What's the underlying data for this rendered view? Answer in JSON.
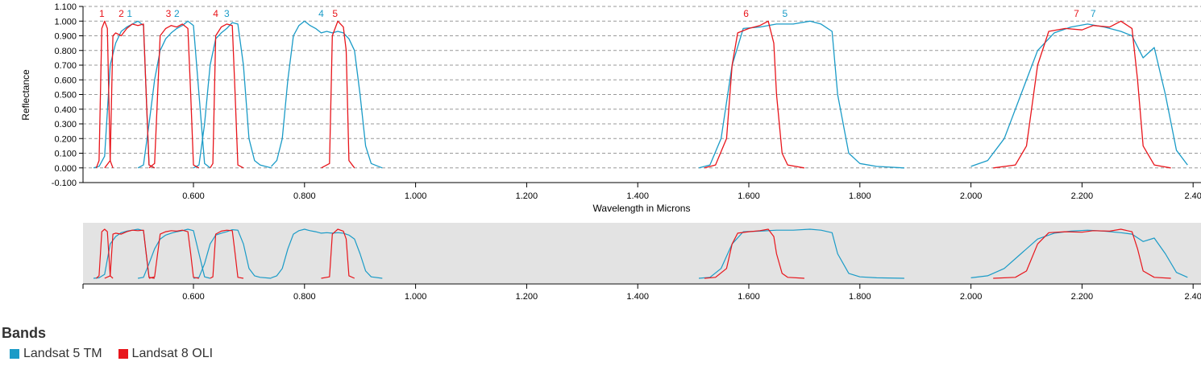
{
  "chart_data": {
    "type": "line",
    "xlabel": "Wavelength in Microns",
    "ylabel": "Reflectance",
    "xlim": [
      0.4,
      2.4
    ],
    "ylim": [
      -0.1,
      1.1
    ],
    "x_ticks": [
      "0.600",
      "0.800",
      "1.000",
      "1.200",
      "1.400",
      "1.600",
      "1.800",
      "2.000",
      "2.200",
      "2.40"
    ],
    "y_ticks": [
      "-0.100",
      "0.000",
      "0.100",
      "0.200",
      "0.300",
      "0.400",
      "0.500",
      "0.600",
      "0.700",
      "0.800",
      "0.900",
      "1.000",
      "1.100"
    ],
    "grid": "horizontal dashed",
    "legend_title": "Bands",
    "colors": {
      "tm": "#1a9bc7",
      "oli": "#e8151b",
      "navigator_bg": "#e3e3e3"
    },
    "series": [
      {
        "name": "Landsat 5 TM",
        "band_labels": [
          {
            "text": "1",
            "x": 0.485
          },
          {
            "text": "2",
            "x": 0.57
          },
          {
            "text": "3",
            "x": 0.66
          },
          {
            "text": "4",
            "x": 0.83
          },
          {
            "text": "5",
            "x": 1.665
          },
          {
            "text": "7",
            "x": 2.22
          }
        ],
        "bands": [
          [
            [
              0.42,
              0.0
            ],
            [
              0.43,
              0.01
            ],
            [
              0.44,
              0.08
            ],
            [
              0.45,
              0.7
            ],
            [
              0.46,
              0.85
            ],
            [
              0.47,
              0.93
            ],
            [
              0.48,
              0.96
            ],
            [
              0.49,
              0.98
            ],
            [
              0.5,
              1.0
            ],
            [
              0.51,
              0.97
            ],
            [
              0.515,
              0.5
            ],
            [
              0.52,
              0.02
            ],
            [
              0.53,
              0.0
            ]
          ],
          [
            [
              0.5,
              0.0
            ],
            [
              0.51,
              0.02
            ],
            [
              0.52,
              0.3
            ],
            [
              0.53,
              0.6
            ],
            [
              0.54,
              0.8
            ],
            [
              0.55,
              0.88
            ],
            [
              0.56,
              0.92
            ],
            [
              0.57,
              0.95
            ],
            [
              0.58,
              0.97
            ],
            [
              0.59,
              1.0
            ],
            [
              0.6,
              0.97
            ],
            [
              0.61,
              0.5
            ],
            [
              0.62,
              0.03
            ],
            [
              0.63,
              0.0
            ]
          ],
          [
            [
              0.6,
              0.0
            ],
            [
              0.61,
              0.02
            ],
            [
              0.62,
              0.3
            ],
            [
              0.63,
              0.7
            ],
            [
              0.64,
              0.88
            ],
            [
              0.65,
              0.92
            ],
            [
              0.66,
              0.95
            ],
            [
              0.67,
              0.99
            ],
            [
              0.68,
              0.98
            ],
            [
              0.69,
              0.7
            ],
            [
              0.7,
              0.2
            ],
            [
              0.71,
              0.05
            ],
            [
              0.72,
              0.02
            ],
            [
              0.74,
              0.0
            ]
          ],
          [
            [
              0.74,
              0.01
            ],
            [
              0.75,
              0.05
            ],
            [
              0.76,
              0.2
            ],
            [
              0.77,
              0.6
            ],
            [
              0.78,
              0.9
            ],
            [
              0.79,
              0.97
            ],
            [
              0.8,
              1.0
            ],
            [
              0.81,
              0.97
            ],
            [
              0.82,
              0.95
            ],
            [
              0.83,
              0.92
            ],
            [
              0.84,
              0.93
            ],
            [
              0.85,
              0.92
            ],
            [
              0.86,
              0.93
            ],
            [
              0.87,
              0.92
            ],
            [
              0.88,
              0.88
            ],
            [
              0.89,
              0.8
            ],
            [
              0.9,
              0.5
            ],
            [
              0.91,
              0.15
            ],
            [
              0.92,
              0.03
            ],
            [
              0.94,
              0.0
            ]
          ],
          [
            [
              1.51,
              0.0
            ],
            [
              1.53,
              0.02
            ],
            [
              1.55,
              0.2
            ],
            [
              1.57,
              0.7
            ],
            [
              1.59,
              0.95
            ],
            [
              1.62,
              0.96
            ],
            [
              1.65,
              0.98
            ],
            [
              1.68,
              0.98
            ],
            [
              1.71,
              1.0
            ],
            [
              1.73,
              0.98
            ],
            [
              1.75,
              0.93
            ],
            [
              1.76,
              0.5
            ],
            [
              1.78,
              0.1
            ],
            [
              1.8,
              0.03
            ],
            [
              1.83,
              0.01
            ],
            [
              1.88,
              0.0
            ]
          ],
          [
            [
              2.0,
              0.01
            ],
            [
              2.03,
              0.05
            ],
            [
              2.06,
              0.2
            ],
            [
              2.09,
              0.5
            ],
            [
              2.12,
              0.8
            ],
            [
              2.15,
              0.92
            ],
            [
              2.18,
              0.96
            ],
            [
              2.21,
              0.98
            ],
            [
              2.24,
              0.96
            ],
            [
              2.27,
              0.93
            ],
            [
              2.29,
              0.9
            ],
            [
              2.31,
              0.75
            ],
            [
              2.33,
              0.82
            ],
            [
              2.35,
              0.5
            ],
            [
              2.37,
              0.12
            ],
            [
              2.39,
              0.02
            ]
          ]
        ]
      },
      {
        "name": "Landsat 8 OLI",
        "band_labels": [
          {
            "text": "1",
            "x": 0.435
          },
          {
            "text": "2",
            "x": 0.47
          },
          {
            "text": "3",
            "x": 0.555
          },
          {
            "text": "4",
            "x": 0.64
          },
          {
            "text": "5",
            "x": 0.855
          },
          {
            "text": "6",
            "x": 1.595
          },
          {
            "text": "7",
            "x": 2.19
          }
        ],
        "bands": [
          [
            [
              0.425,
              0.0
            ],
            [
              0.43,
              0.05
            ],
            [
              0.435,
              0.95
            ],
            [
              0.44,
              1.0
            ],
            [
              0.445,
              0.95
            ],
            [
              0.45,
              0.05
            ],
            [
              0.455,
              0.0
            ]
          ],
          [
            [
              0.44,
              0.0
            ],
            [
              0.45,
              0.05
            ],
            [
              0.455,
              0.9
            ],
            [
              0.46,
              0.92
            ],
            [
              0.47,
              0.9
            ],
            [
              0.48,
              0.95
            ],
            [
              0.49,
              0.98
            ],
            [
              0.5,
              0.97
            ],
            [
              0.51,
              0.98
            ],
            [
              0.515,
              0.5
            ],
            [
              0.52,
              0.02
            ],
            [
              0.53,
              0.0
            ]
          ],
          [
            [
              0.52,
              0.0
            ],
            [
              0.53,
              0.03
            ],
            [
              0.54,
              0.9
            ],
            [
              0.55,
              0.95
            ],
            [
              0.56,
              0.97
            ],
            [
              0.57,
              0.96
            ],
            [
              0.58,
              0.98
            ],
            [
              0.59,
              0.95
            ],
            [
              0.595,
              0.5
            ],
            [
              0.6,
              0.02
            ],
            [
              0.61,
              0.0
            ]
          ],
          [
            [
              0.63,
              0.0
            ],
            [
              0.635,
              0.03
            ],
            [
              0.64,
              0.9
            ],
            [
              0.65,
              0.96
            ],
            [
              0.66,
              0.98
            ],
            [
              0.67,
              0.97
            ],
            [
              0.675,
              0.5
            ],
            [
              0.68,
              0.02
            ],
            [
              0.69,
              0.0
            ]
          ],
          [
            [
              0.83,
              0.0
            ],
            [
              0.845,
              0.03
            ],
            [
              0.85,
              0.9
            ],
            [
              0.855,
              0.95
            ],
            [
              0.86,
              1.0
            ],
            [
              0.87,
              0.96
            ],
            [
              0.875,
              0.8
            ],
            [
              0.88,
              0.05
            ],
            [
              0.89,
              0.0
            ]
          ],
          [
            [
              1.52,
              0.0
            ],
            [
              1.54,
              0.02
            ],
            [
              1.56,
              0.2
            ],
            [
              1.57,
              0.7
            ],
            [
              1.58,
              0.92
            ],
            [
              1.6,
              0.95
            ],
            [
              1.62,
              0.97
            ],
            [
              1.635,
              1.0
            ],
            [
              1.645,
              0.85
            ],
            [
              1.65,
              0.5
            ],
            [
              1.66,
              0.1
            ],
            [
              1.67,
              0.02
            ],
            [
              1.7,
              0.0
            ]
          ],
          [
            [
              2.04,
              0.0
            ],
            [
              2.08,
              0.02
            ],
            [
              2.1,
              0.15
            ],
            [
              2.12,
              0.7
            ],
            [
              2.14,
              0.93
            ],
            [
              2.17,
              0.95
            ],
            [
              2.2,
              0.94
            ],
            [
              2.22,
              0.97
            ],
            [
              2.25,
              0.96
            ],
            [
              2.27,
              1.0
            ],
            [
              2.29,
              0.95
            ],
            [
              2.3,
              0.6
            ],
            [
              2.31,
              0.15
            ],
            [
              2.33,
              0.02
            ],
            [
              2.36,
              0.0
            ]
          ]
        ]
      }
    ]
  },
  "legend": {
    "title": "Bands",
    "items": [
      {
        "label": "Landsat 5 TM",
        "color": "#1a9bc7"
      },
      {
        "label": "Landsat 8 OLI",
        "color": "#e8151b"
      }
    ]
  }
}
